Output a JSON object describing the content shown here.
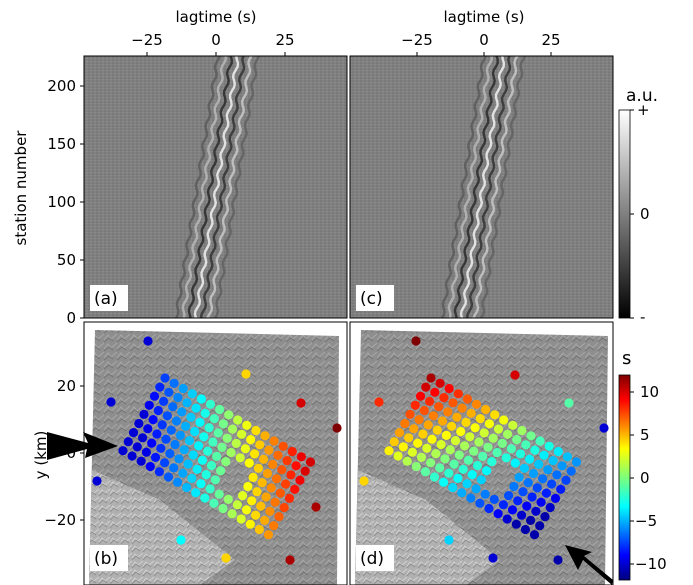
{
  "figure": {
    "top_xlabel": "lagtime (s)",
    "top_xticks": [
      "−25",
      "0",
      "25"
    ],
    "top_ylabel": "station number",
    "top_yticks": [
      "0",
      "50",
      "100",
      "150",
      "200"
    ],
    "bottom_ylabel": "y (km)",
    "bottom_yticks": [
      "−20",
      "0",
      "20"
    ],
    "panel_labels": [
      "(a)",
      "(b)",
      "(c)",
      "(d)"
    ],
    "colorbar_top": {
      "label": "a.u.",
      "ticks": [
        "+",
        "0",
        "-"
      ]
    },
    "colorbar_bottom": {
      "label": "s",
      "ticks": [
        "10",
        "5",
        "0",
        "−5",
        "−10"
      ]
    }
  },
  "chart_data": [
    {
      "type": "heatmap",
      "panel": "(a)",
      "title": "",
      "xlabel": "lagtime (s)",
      "ylabel": "station number",
      "xlim": [
        -50,
        50
      ],
      "ylim": [
        0,
        225
      ],
      "x_ticks": [
        -25,
        0,
        25
      ],
      "y_ticks": [
        0,
        50,
        100,
        150,
        200
      ],
      "colormap": "gray",
      "wavefront_lag_at_station_0": -8,
      "wavefront_lag_at_station_225": 8
    },
    {
      "type": "heatmap",
      "panel": "(c)",
      "title": "",
      "xlabel": "lagtime (s)",
      "ylabel": "",
      "xlim": [
        -50,
        50
      ],
      "ylim": [
        0,
        225
      ],
      "x_ticks": [
        -25,
        0,
        25
      ],
      "colormap": "gray",
      "wavefront_lag_at_station_0": -8,
      "wavefront_lag_at_station_225": 8
    },
    {
      "type": "scatter",
      "panel": "(b)",
      "title": "",
      "xlabel": "",
      "ylabel": "y (km)",
      "ylim": [
        -35,
        40
      ],
      "y_ticks": [
        -20,
        0,
        20
      ],
      "colorbar": {
        "label": "s",
        "range": [
          -12,
          12
        ],
        "ticks": [
          10,
          5,
          0,
          -5,
          -10
        ]
      },
      "arrow_direction": "from west (left)",
      "trend": "values increase from west (about -10 s) to east (about +10 s)",
      "outer_stations_value_s": [
        -10,
        4,
        -10,
        -10,
        10,
        12,
        11,
        -3,
        4,
        11
      ]
    },
    {
      "type": "scatter",
      "panel": "(d)",
      "title": "",
      "xlabel": "",
      "ylabel": "",
      "ylim": [
        -35,
        40
      ],
      "colorbar": {
        "label": "s",
        "range": [
          -12,
          12
        ],
        "ticks": [
          10,
          5,
          0,
          -5,
          -10
        ]
      },
      "arrow_direction": "from south-east (bottom right)",
      "trend": "values decrease from north-west (about +10 s) to south-east (about -10 s)",
      "outer_stations_value_s": [
        12,
        10,
        8,
        4,
        -1,
        -10,
        -4,
        -10,
        -11
      ]
    }
  ]
}
